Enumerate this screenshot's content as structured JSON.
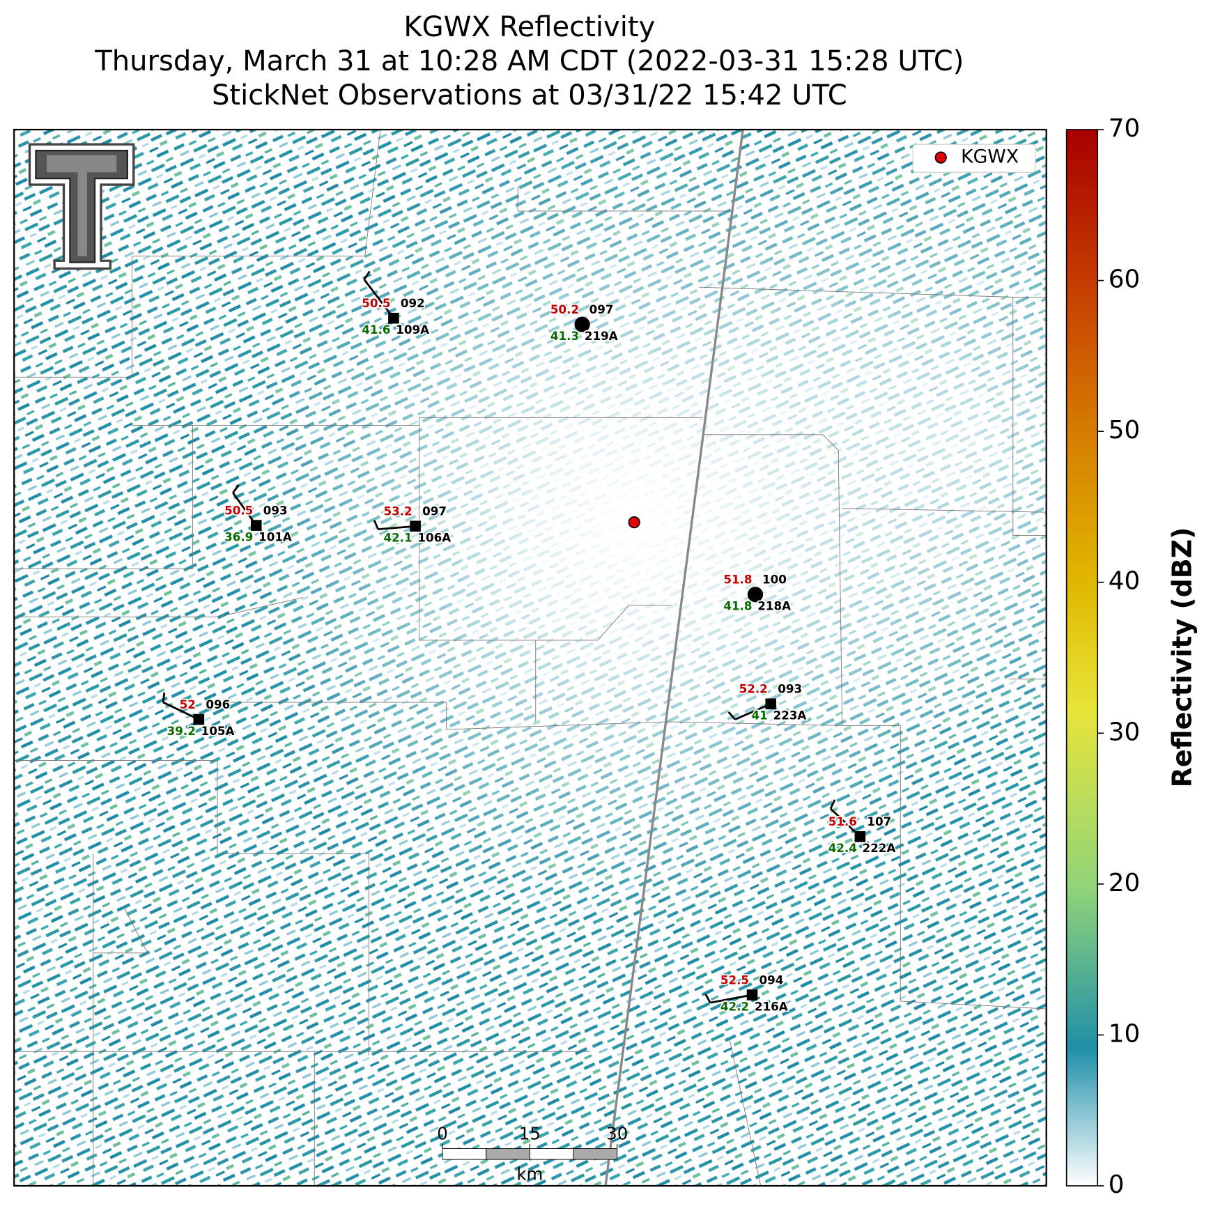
{
  "title": [
    "KGWX Reflectivity",
    "Thursday, March 31 at 10:28 AM CDT (2022-03-31 15:28 UTC)",
    "StickNet Observations at 03/31/22 15:42 UTC"
  ],
  "legend": "KGWX",
  "colorbar": {
    "label": "Reflectivity (dBZ)",
    "lim": [
      0,
      70
    ],
    "ticks": [
      0,
      10,
      20,
      30,
      40,
      50,
      60,
      70
    ]
  },
  "scale_bar": {
    "ticks": [
      0,
      15,
      30
    ],
    "unit": "km"
  },
  "stations": [
    {
      "id": "109A",
      "temperature": 50.5,
      "dewpoint": 41.6,
      "code": "092"
    },
    {
      "id": "219A",
      "temperature": 50.2,
      "dewpoint": 41.3,
      "code": "097"
    },
    {
      "id": "101A",
      "temperature": 50.5,
      "dewpoint": 36.9,
      "code": "093"
    },
    {
      "id": "106A",
      "temperature": 53.2,
      "dewpoint": 42.1,
      "code": "097"
    },
    {
      "id": "218A",
      "temperature": 51.8,
      "dewpoint": 41.8,
      "code": "100"
    },
    {
      "id": "105A",
      "temperature": 52.0,
      "dewpoint": 39.2,
      "code": "096"
    },
    {
      "id": "223A",
      "temperature": 52.2,
      "dewpoint": 41.0,
      "code": "093"
    },
    {
      "id": "222A",
      "temperature": 51.6,
      "dewpoint": 42.4,
      "code": "107"
    },
    {
      "id": "216A",
      "temperature": 52.5,
      "dewpoint": 42.2,
      "code": "094"
    }
  ]
}
